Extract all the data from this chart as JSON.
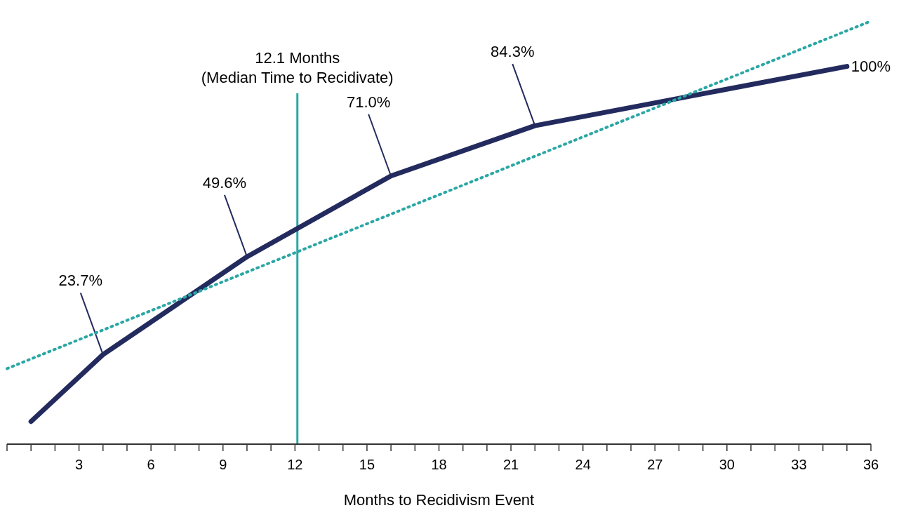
{
  "chart_data": {
    "type": "line",
    "xlabel": "Months to Recidivism Event",
    "xlim": [
      0,
      36
    ],
    "tick_labels": "x",
    "grid": false,
    "xticks": [
      {
        "value": 0,
        "label": null
      },
      {
        "value": 1,
        "label": null
      },
      {
        "value": 2,
        "label": null
      },
      3,
      {
        "value": 4,
        "label": null
      },
      {
        "value": 5,
        "label": null
      },
      6,
      {
        "value": 7,
        "label": null
      },
      {
        "value": 8,
        "label": null
      },
      9,
      {
        "value": 10,
        "label": null
      },
      {
        "value": 11,
        "label": null
      },
      12,
      {
        "value": 13,
        "label": null
      },
      {
        "value": 14,
        "label": null
      },
      15,
      {
        "value": 16,
        "label": null
      },
      {
        "value": 17,
        "label": null
      },
      18,
      {
        "value": 19,
        "label": null
      },
      {
        "value": 20,
        "label": null
      },
      21,
      {
        "value": 22,
        "label": null
      },
      {
        "value": 23,
        "label": null
      },
      24,
      {
        "value": 25,
        "label": null
      },
      {
        "value": 26,
        "label": null
      },
      27,
      {
        "value": 28,
        "label": null
      },
      {
        "value": 29,
        "label": null
      },
      30,
      {
        "value": 31,
        "label": null
      },
      {
        "value": 32,
        "label": null
      },
      33,
      {
        "value": 34,
        "label": null
      },
      {
        "value": 35,
        "label": null
      },
      36
    ],
    "series": [
      {
        "color": "#232b5e",
        "x": [
          1,
          4,
          10,
          16,
          22,
          35
        ],
        "values": [
          6,
          23.7,
          49.6,
          71.0,
          84.3,
          100
        ],
        "value_labels": [
          null,
          "23.7%",
          "49.6%",
          "71.0%",
          "84.3%",
          "100%"
        ],
        "line_style": "solid",
        "marker": "none"
      },
      {
        "type": "line",
        "color": "#2aa7a5",
        "x": [
          0,
          36
        ],
        "values": [
          20,
          112
        ],
        "line_style": "dotted",
        "marker": "none"
      }
    ],
    "ref_lines": [
      {
        "axis": "x",
        "value": 12.1,
        "label": "12.1 Months\n(Median Time to Recidivate)",
        "color": "#2aa7a5",
        "line_style": "solid"
      }
    ]
  }
}
